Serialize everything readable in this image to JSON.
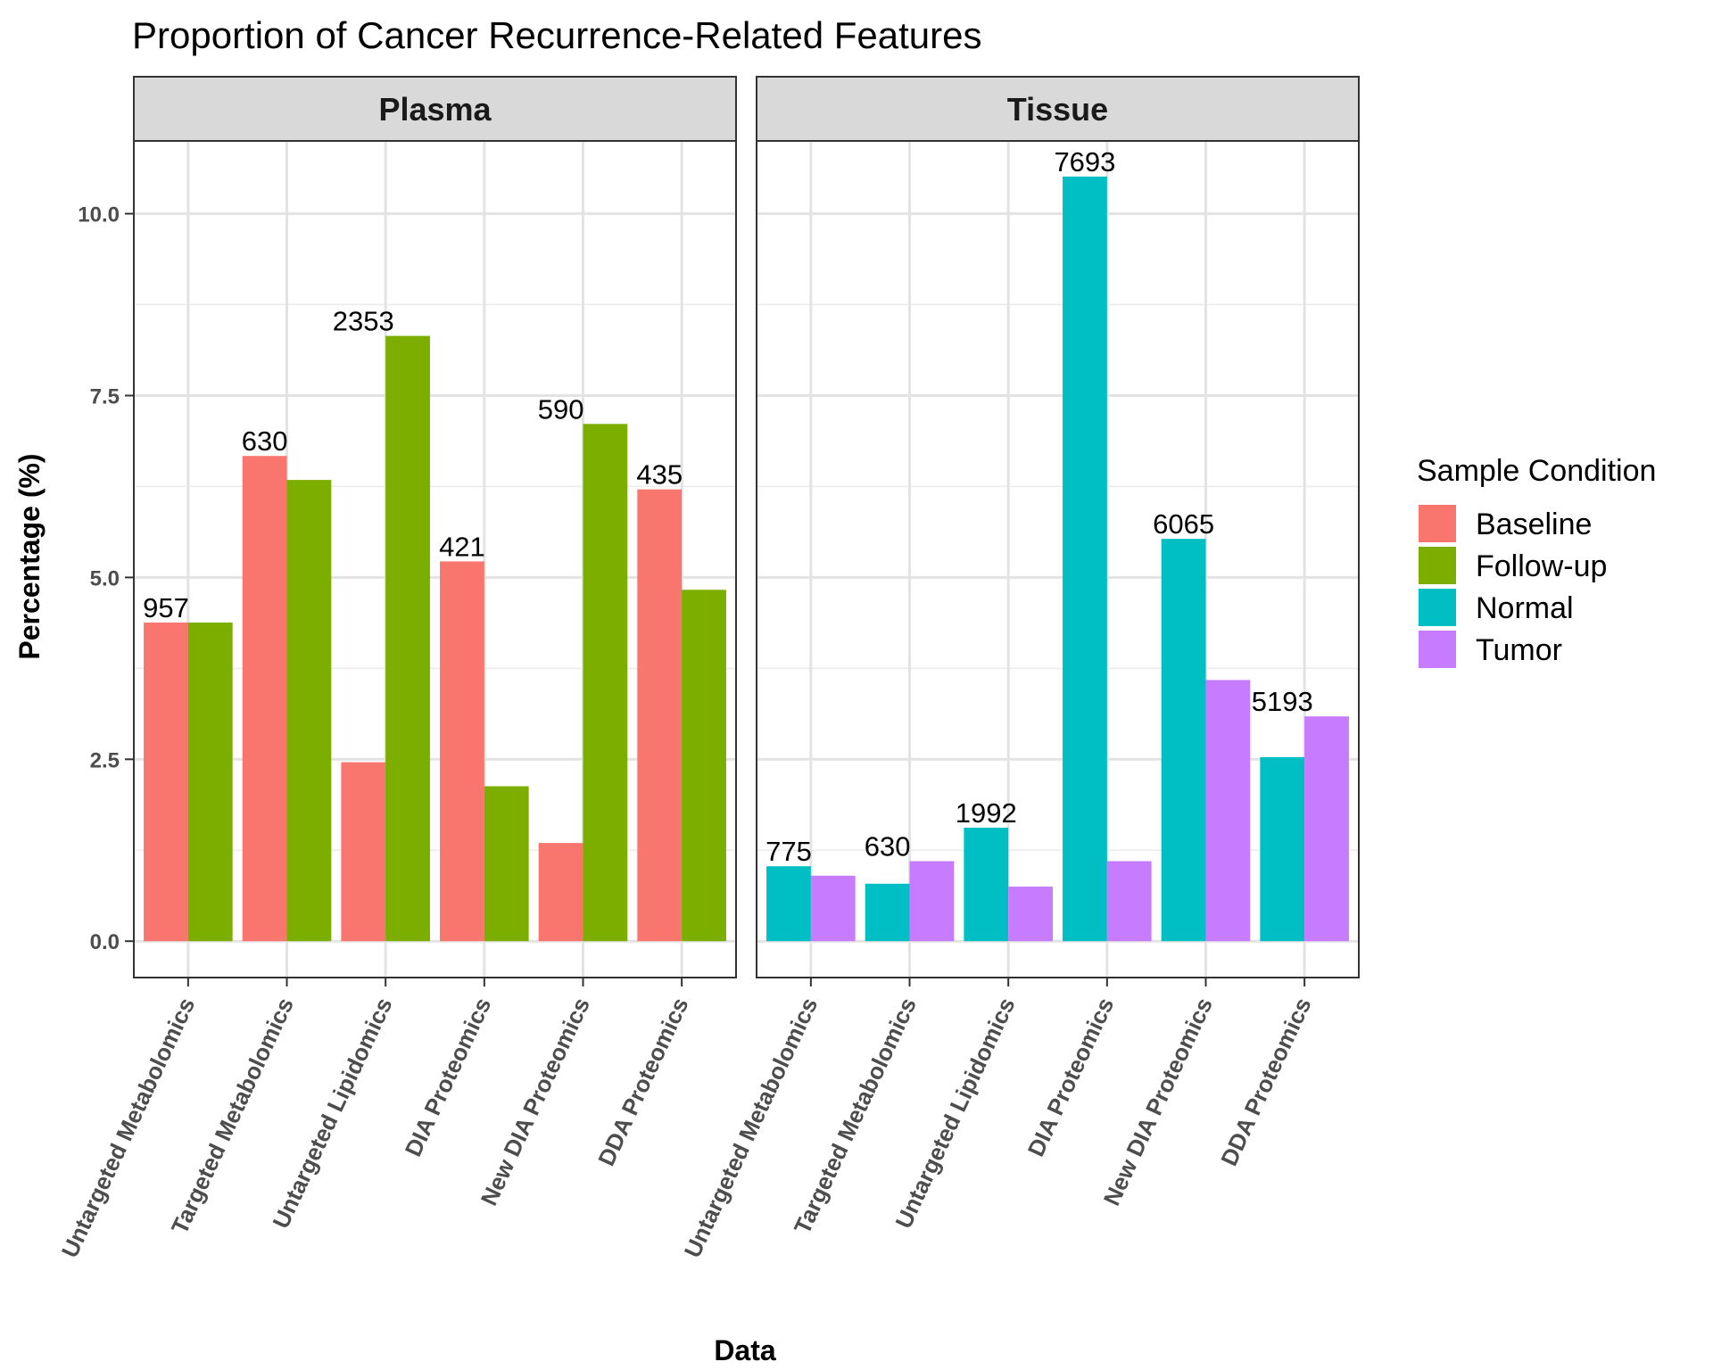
{
  "chart_data": {
    "type": "bar",
    "title": "Proportion of Cancer Recurrence-Related Features",
    "xlabel": "Data",
    "ylabel": "Percentage (%)",
    "ylim": [
      -0.5,
      11.0
    ],
    "yticks": [
      0.0,
      2.5,
      5.0,
      7.5,
      10.0
    ],
    "ytick_labels": [
      "0.0",
      "2.5",
      "5.0",
      "7.5",
      "10.0"
    ],
    "grid": true,
    "legend": {
      "title": "Sample Condition",
      "position": "right",
      "items": [
        {
          "name": "Baseline",
          "color": "#F8766D"
        },
        {
          "name": "Follow-up",
          "color": "#7CAE00"
        },
        {
          "name": "Normal",
          "color": "#00BFC4"
        },
        {
          "name": "Tumor",
          "color": "#C77CFF"
        }
      ]
    },
    "categories": [
      "Untargeted Metabolomics",
      "Targeted Metabolomics",
      "Untargeted Lipidomics",
      "DIA Proteomics",
      "New DIA Proteomics",
      "DDA Proteomics"
    ],
    "facets": [
      {
        "name": "Plasma",
        "series": [
          {
            "name": "Baseline",
            "color": "#F8766D",
            "values": [
              4.38,
              6.67,
              2.46,
              5.22,
              1.35,
              6.21
            ]
          },
          {
            "name": "Follow-up",
            "color": "#7CAE00",
            "values": [
              4.38,
              6.34,
              8.32,
              2.13,
              7.11,
              4.83
            ]
          }
        ],
        "counts": [
          "957",
          "630",
          "2353",
          "421",
          "590",
          "435"
        ]
      },
      {
        "name": "Tissue",
        "series": [
          {
            "name": "Normal",
            "color": "#00BFC4",
            "values": [
              1.03,
              0.79,
              1.56,
              10.51,
              5.53,
              2.53
            ]
          },
          {
            "name": "Tumor",
            "color": "#C77CFF",
            "values": [
              0.9,
              1.1,
              0.75,
              1.1,
              3.59,
              3.09
            ]
          }
        ],
        "counts": [
          "775",
          "630",
          "1992",
          "7693",
          "6065",
          "5193"
        ]
      }
    ]
  }
}
